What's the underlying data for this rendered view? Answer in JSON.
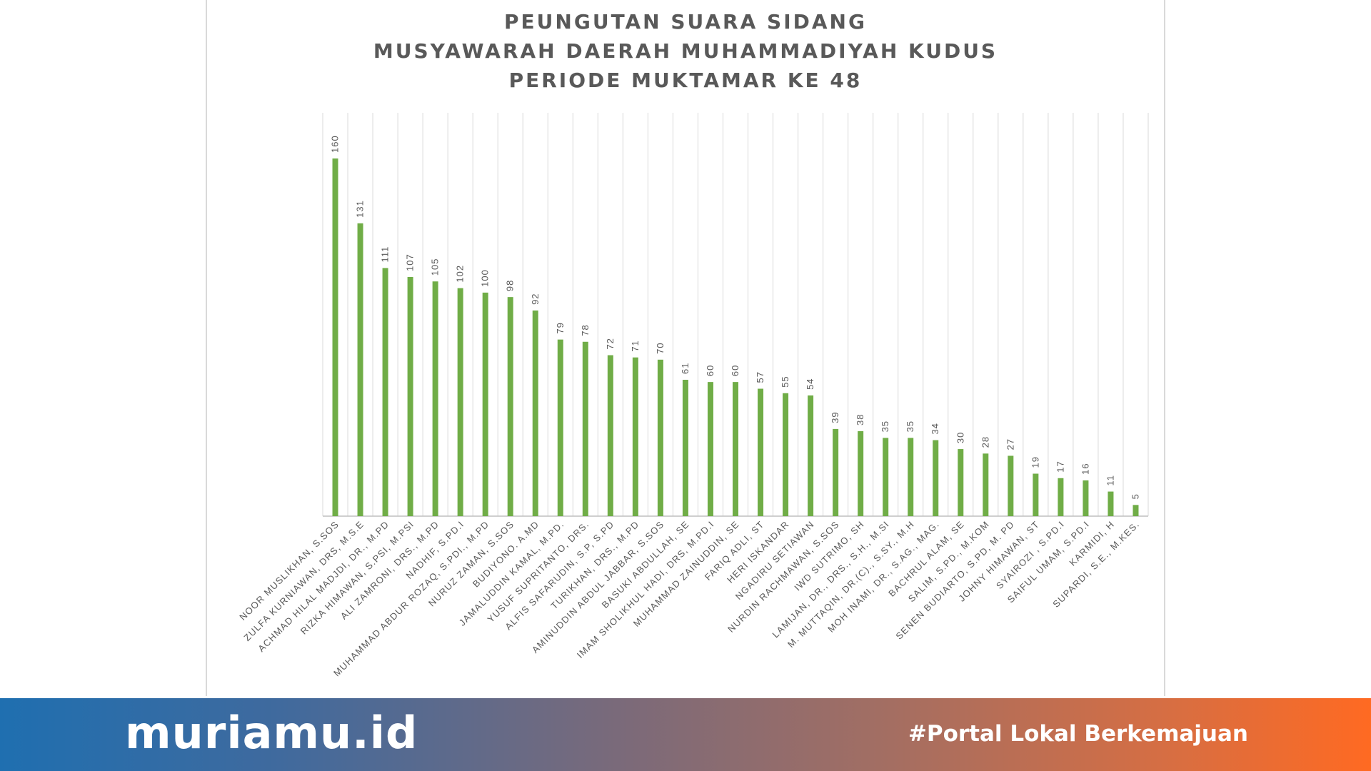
{
  "chart_data": {
    "type": "bar",
    "title_lines": [
      "PEUNGUTAN SUARA SIDANG",
      "MUSYAWARAH DAERAH MUHAMMADIYAH KUDUS",
      "PERIODE MUKTAMAR KE 48"
    ],
    "categories": [
      "NOOR MUSLIKHAN, S.SOS",
      "ZULFA KURNIAWAN, DRS, M.S.E",
      "ACHMAD HILAL MADJDI, DR., M.PD",
      "RIZKA HIMAWAN, S.PSI, M.PSI",
      "ALI ZAMRONI, DRS., M.PD",
      "NADHIF, S.PD.I",
      "MUHAMMAD ABDUR ROZAQ, S.PDI., M.PD",
      "NURUZ ZAMAN, S.SOS",
      "BUDIYONO. A.MD",
      "JAMALUDDIN KAMAL, M.PD.",
      "YUSUF SUPRITANTO, DRS.",
      "ALFIS SAFARUDIN, S.P, S.PD",
      "TURIKHAN, DRS., M.PD",
      "AMINUDDIN ABDUL JABBAR, S.SOS",
      "BASUKI ABDULLAH, SE",
      "IMAM SHOLIKHUL HADI, DRS, M.PD.I",
      "MUHAMMAD ZAINUDDIN, SE",
      "FARIQ ADLI, ST",
      "HERI ISKANDAR",
      "NGADIRU SETIAWAN",
      "NURDIN RACHMAWAN, S.SOS",
      "IWD SUTRIMO, SH",
      "LAMIJAN, DR., DRS., S.H., M.SI",
      "M. MUTTAQIN, DR.(C)., S.SY., M.H",
      "MOH INAMI, DR., S.AG., MAG.",
      "BACHRUL ALAM, SE",
      "SALIM, S.PD., M.KOM",
      "SENEN BUDIARTO, S.PD, M. PD",
      "JOHNY HIMAWAN, ST",
      "SYAIROZI , S.PD.I",
      "SAIFUL UMAM, S.PD.I",
      "KARMIDI, H",
      "SUPARDI, S.E., M.KES."
    ],
    "values": [
      160,
      131,
      111,
      107,
      105,
      102,
      100,
      98,
      92,
      79,
      78,
      72,
      71,
      70,
      61,
      60,
      60,
      57,
      55,
      54,
      39,
      38,
      35,
      35,
      34,
      30,
      28,
      27,
      19,
      17,
      16,
      11,
      5
    ],
    "xlabel": "",
    "ylabel": "",
    "ylim": [
      0,
      180
    ],
    "bar_color": "#70ad47",
    "grid": "vertical",
    "data_labels": true
  },
  "footer": {
    "brand": "muriamu.id",
    "tagline": "#Portal Lokal Berkemajuan"
  }
}
